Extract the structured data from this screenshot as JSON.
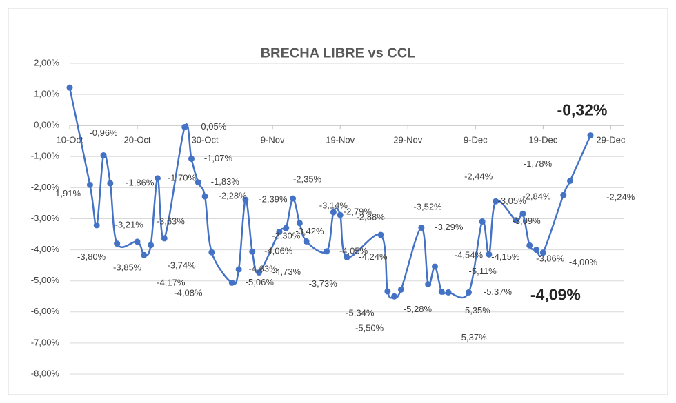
{
  "chart_data": {
    "type": "line",
    "title": "BRECHA LIBRE vs CCL",
    "x": [
      "10-Oct",
      "13-Oct",
      "14-Oct",
      "15-Oct",
      "16-Oct",
      "17-Oct",
      "20-Oct",
      "21-Oct",
      "22-Oct",
      "23-Oct",
      "24-Oct",
      "27-Oct",
      "28-Oct",
      "29-Oct",
      "30-Oct",
      "31-Oct",
      "3-Nov",
      "4-Nov",
      "5-Nov",
      "6-Nov",
      "7-Nov",
      "10-Nov",
      "11-Nov",
      "12-Nov",
      "13-Nov",
      "14-Nov",
      "17-Nov",
      "18-Nov",
      "19-Nov",
      "20-Nov",
      "25-Nov",
      "26-Nov",
      "27-Nov",
      "28-Nov",
      "1-Dec",
      "2-Dec",
      "3-Dec",
      "4-Dec",
      "5-Dec",
      "8-Dec",
      "10-Dec",
      "11-Dec",
      "12-Dec",
      "15-Dec",
      "16-Dec",
      "17-Dec",
      "18-Dec",
      "19-Dec",
      "22-Dec",
      "23-Dec",
      "26-Dec"
    ],
    "series": [
      {
        "color": "#4472c4",
        "values": [
          1.22,
          -1.91,
          -3.21,
          -0.96,
          -1.86,
          -3.8,
          -3.74,
          -4.17,
          -3.85,
          -1.7,
          -3.63,
          -0.05,
          -1.07,
          -1.83,
          -2.28,
          -4.08,
          -5.06,
          -4.63,
          -2.39,
          -4.06,
          -4.73,
          -3.42,
          -3.3,
          -2.35,
          -3.14,
          -3.73,
          -4.05,
          -2.79,
          -2.88,
          -4.24,
          -3.52,
          -5.34,
          -5.5,
          -5.28,
          -3.29,
          -5.11,
          -4.54,
          -5.35,
          -5.37,
          -5.37,
          -3.09,
          -4.15,
          -2.44,
          -3.05,
          -2.84,
          -3.86,
          -4.0,
          -4.09,
          -2.24,
          -1.78,
          -0.32
        ],
        "value_labels": [
          null,
          "-1,91%",
          "-3,21%",
          "-0,96%",
          "-1,86%",
          "-3,80%",
          "-3,74%",
          "-4,17%",
          "-3,85%",
          "-1,70%",
          "-3,63%",
          "-0,05%",
          "-1,07%",
          "-1,83%",
          "-2,28%",
          "-4,08%",
          "-5,06%",
          "-4,63%",
          "-2,39%",
          "-4,06%",
          "-4,73%",
          "-3,42%",
          "-3,30%",
          "-2,35%",
          "-3,14%",
          "-3,73%",
          "-4,05%",
          "-2,79%",
          "-2,88%",
          "-4,24%",
          "-3,52%",
          "-5,34%",
          "-5,50%",
          "-5,28%",
          "-3,29%",
          "-5,11%",
          "-4,54%",
          "-5,35%",
          "-5,37%",
          "-5,37%",
          "-3,09%",
          "-4,15%",
          "-2,44%",
          "-3,05%",
          "-2,84%",
          "-3,86%",
          "-4,00%",
          "-4,09%",
          "-2,24%",
          "-1,78%",
          "-0,32%"
        ]
      }
    ],
    "xlim": [
      "10-Oct",
      "31-Dec"
    ],
    "xticks": [
      "10-Oct",
      "20-Oct",
      "30-Oct",
      "9-Nov",
      "19-Nov",
      "29-Nov",
      "9-Dec",
      "19-Dec",
      "29-Dec"
    ],
    "ylim": [
      -8,
      2
    ],
    "yticks": [
      {
        "value": -8,
        "label": "-8,00%"
      },
      {
        "value": -7,
        "label": "-7,00%"
      },
      {
        "value": -6,
        "label": "-6,00%"
      },
      {
        "value": -5,
        "label": "-5,00%"
      },
      {
        "value": -4,
        "label": "-4,00%"
      },
      {
        "value": -3,
        "label": "-3,00%"
      },
      {
        "value": -2,
        "label": "-2,00%"
      },
      {
        "value": -1,
        "label": "-1,00%"
      },
      {
        "value": 0,
        "label": "0,00%"
      },
      {
        "value": 1,
        "label": "1,00%"
      },
      {
        "value": 2,
        "label": "2,00%"
      }
    ],
    "grid": true,
    "smooth": true
  }
}
